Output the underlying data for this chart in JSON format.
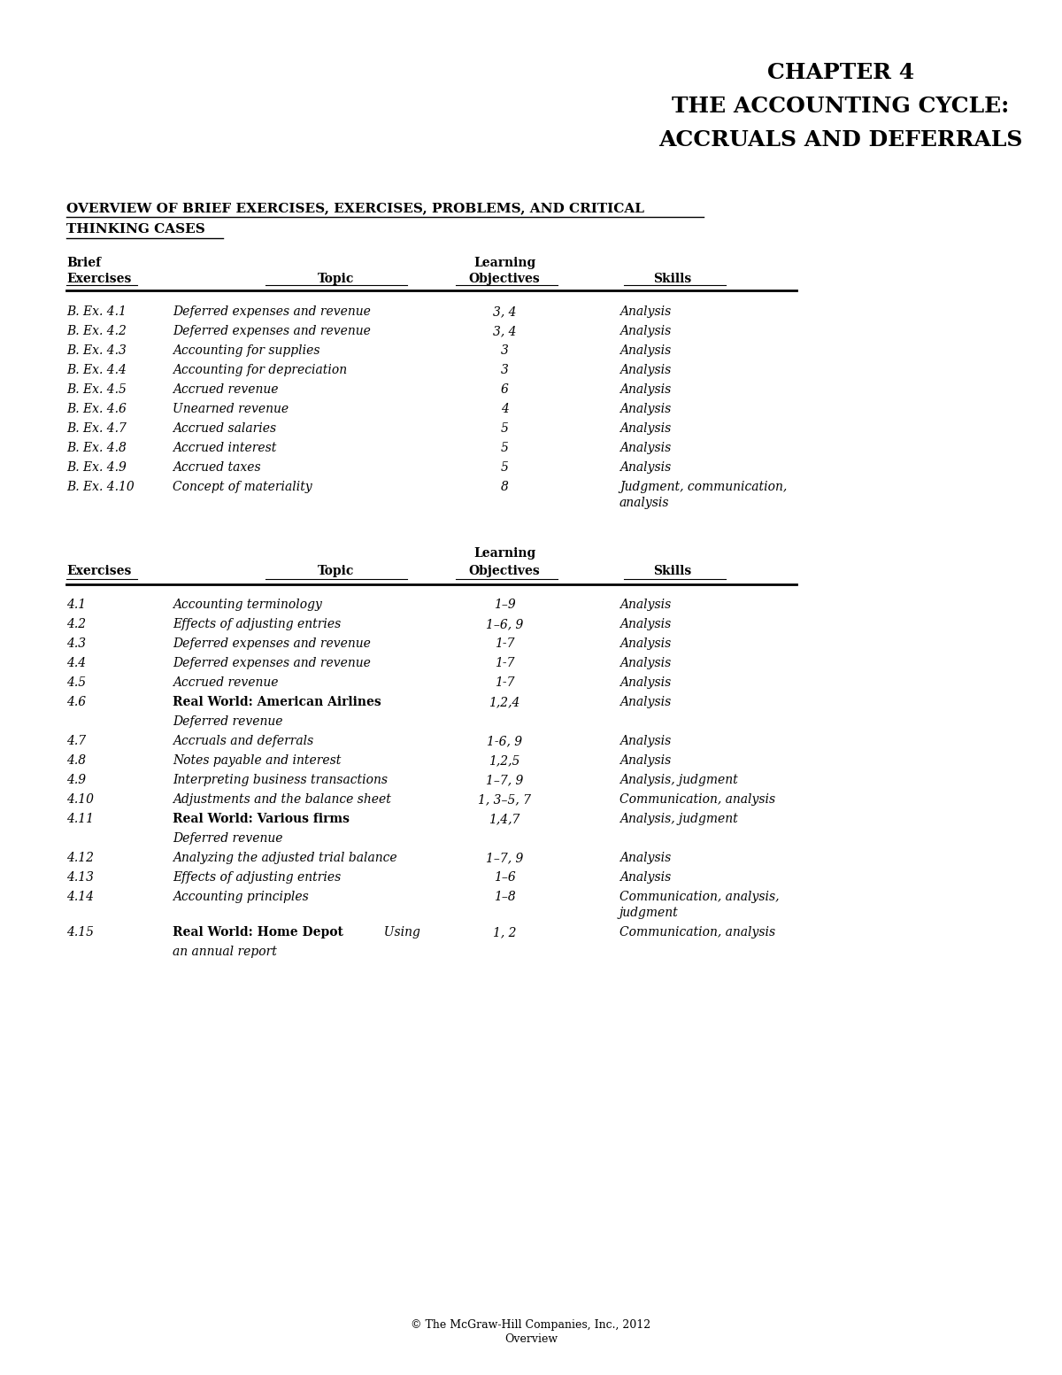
{
  "title_lines": [
    "CHAPTER 4",
    "THE ACCOUNTING CYCLE:",
    "ACCRUALS AND DEFERRALS"
  ],
  "bg_color": "#ffffff",
  "text_color": "#000000",
  "table1_rows": [
    [
      "B. Ex. 4.1",
      "Deferred expenses and revenue",
      "3, 4",
      "Analysis",
      false
    ],
    [
      "B. Ex. 4.2",
      "Deferred expenses and revenue",
      "3, 4",
      "Analysis",
      false
    ],
    [
      "B. Ex. 4.3",
      "Accounting for supplies",
      "3",
      "Analysis",
      false
    ],
    [
      "B. Ex. 4.4",
      "Accounting for depreciation",
      "3",
      "Analysis",
      false
    ],
    [
      "B. Ex. 4.5",
      "Accrued revenue",
      "6",
      "Analysis",
      false
    ],
    [
      "B. Ex. 4.6",
      "Unearned revenue",
      "4",
      "Analysis",
      false
    ],
    [
      "B. Ex. 4.7",
      "Accrued salaries",
      "5",
      "Analysis",
      false
    ],
    [
      "B. Ex. 4.8",
      "Accrued interest",
      "5",
      "Analysis",
      false
    ],
    [
      "B. Ex. 4.9",
      "Accrued taxes",
      "5",
      "Analysis",
      false
    ],
    [
      "B. Ex. 4.10",
      "Concept of materiality",
      "8",
      "Judgment, communication,\nanalysis",
      false
    ]
  ],
  "table2_rows": [
    [
      "4.1",
      "Accounting terminology",
      "1–9",
      "Analysis",
      false,
      false
    ],
    [
      "4.2",
      "Effects of adjusting entries",
      "1–6, 9",
      "Analysis",
      false,
      false
    ],
    [
      "4.3",
      "Deferred expenses and revenue",
      "1-7",
      "Analysis",
      false,
      false
    ],
    [
      "4.4",
      "Deferred expenses and revenue",
      "1-7",
      "Analysis",
      false,
      false
    ],
    [
      "4.5",
      "Accrued revenue",
      "1-7",
      "Analysis",
      false,
      false
    ],
    [
      "4.6",
      "Real World: American Airlines",
      "1,2,4",
      "Analysis",
      true,
      true
    ],
    [
      "",
      "Deferred revenue",
      "",
      "",
      false,
      false
    ],
    [
      "4.7",
      "Accruals and deferrals",
      "1-6, 9",
      "Analysis",
      false,
      false
    ],
    [
      "4.8",
      "Notes payable and interest",
      "1,2,5",
      "Analysis",
      false,
      false
    ],
    [
      "4.9",
      "Interpreting business transactions",
      "1–7, 9",
      "Analysis, judgment",
      false,
      false
    ],
    [
      "4.10",
      "Adjustments and the balance sheet",
      "1, 3–5, 7",
      "Communication, analysis",
      false,
      false
    ],
    [
      "4.11",
      "Real World: Various firms",
      "1,4,7",
      "Analysis, judgment",
      true,
      true
    ],
    [
      "",
      "Deferred revenue",
      "",
      "",
      false,
      false
    ],
    [
      "4.12",
      "Analyzing the adjusted trial balance",
      "1–7, 9",
      "Analysis",
      false,
      false
    ],
    [
      "4.13",
      "Effects of adjusting entries",
      "1–6",
      "Analysis",
      false,
      false
    ],
    [
      "4.14",
      "Accounting principles",
      "1–8",
      "Communication, analysis,\njudgment",
      false,
      false
    ],
    [
      "4.15",
      "Real World: Home Depot",
      "1, 2",
      "Communication, analysis",
      true,
      true
    ],
    [
      "",
      "an annual report",
      "",
      "",
      false,
      true
    ]
  ],
  "footer_line1": "© The McGraw-Hill Companies, Inc., 2012",
  "footer_line2": "Overview"
}
